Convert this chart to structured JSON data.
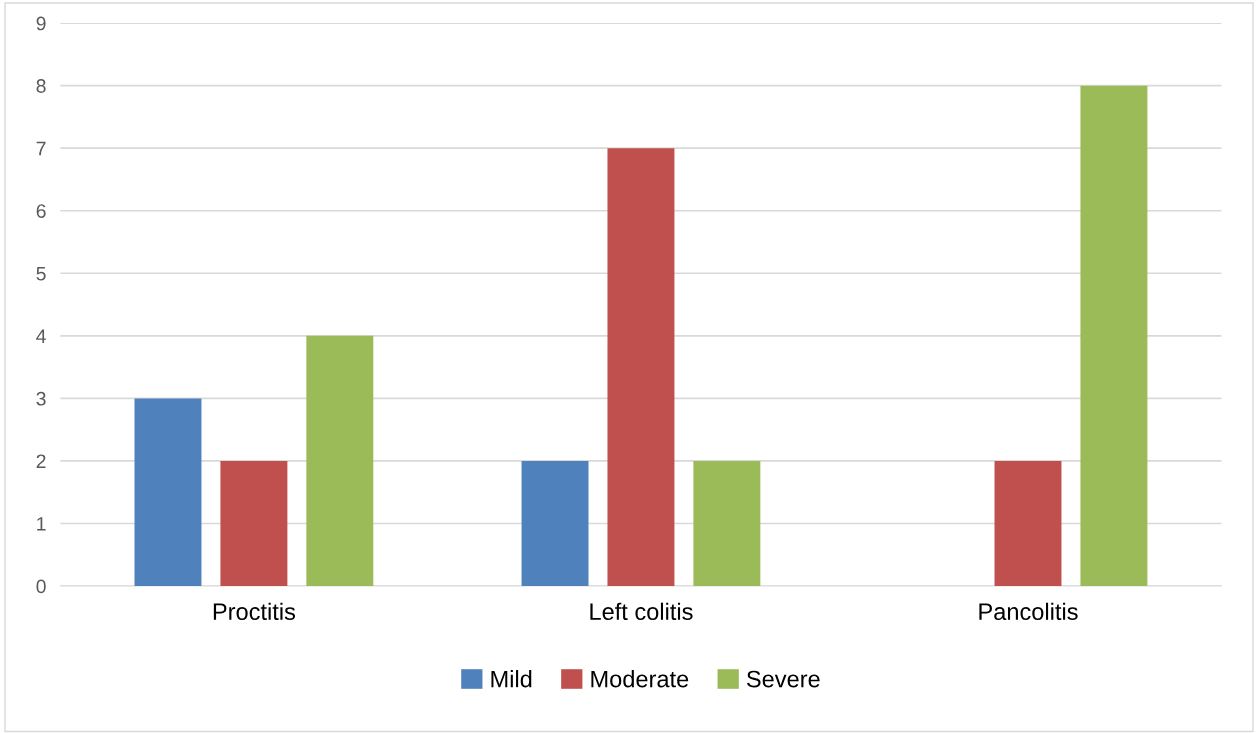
{
  "chart_data": {
    "type": "bar",
    "categories": [
      "Proctitis",
      "Left colitis",
      "Pancolitis"
    ],
    "series": [
      {
        "name": "Mild",
        "color": "#4f81bd",
        "values": [
          3,
          2,
          0
        ]
      },
      {
        "name": "Moderate",
        "color": "#c0504d",
        "values": [
          2,
          7,
          2
        ]
      },
      {
        "name": "Severe",
        "color": "#9bbb59",
        "values": [
          4,
          2,
          8
        ]
      }
    ],
    "ylim": [
      0,
      9
    ],
    "yticks": [
      0,
      1,
      2,
      3,
      4,
      5,
      6,
      7,
      8,
      9
    ],
    "grid": "y",
    "legend": "bottom"
  }
}
